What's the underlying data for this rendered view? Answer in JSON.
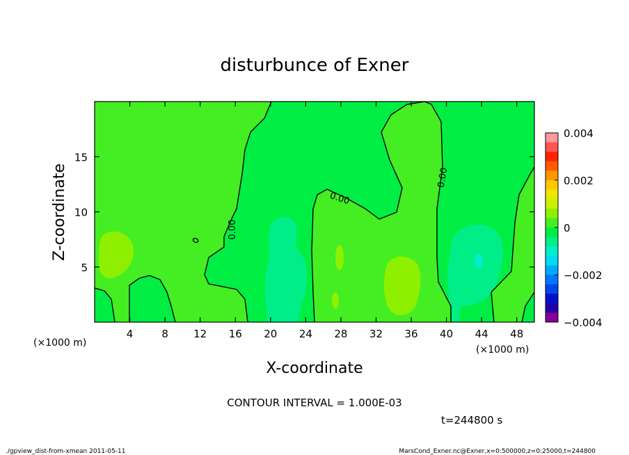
{
  "chart_data": {
    "type": "heatmap",
    "title": "disturbunce of Exner",
    "xlabel": "X-coordinate",
    "ylabel": "Z-coordinate",
    "x_unit": "(×1000 m)",
    "z_unit": "(×1000 m)",
    "xlim": [
      0,
      50
    ],
    "ylim": [
      0,
      20
    ],
    "x_ticks": [
      4,
      8,
      12,
      16,
      20,
      24,
      28,
      32,
      36,
      40,
      44,
      48
    ],
    "y_ticks": [
      5,
      10,
      15
    ],
    "colorbar": {
      "ticks": [
        {
          "value": 0.004,
          "label": "0.004"
        },
        {
          "value": 0.002,
          "label": "0.002"
        },
        {
          "value": 0,
          "label": "0"
        },
        {
          "value": -0.002,
          "label": "−0.002"
        },
        {
          "value": -0.004,
          "label": "−0.004"
        }
      ],
      "levels": [
        {
          "lo": 0.0036,
          "hi": 0.004,
          "color": "#ff9999"
        },
        {
          "lo": 0.0032,
          "hi": 0.0036,
          "color": "#ff5555"
        },
        {
          "lo": 0.0028,
          "hi": 0.0032,
          "color": "#ff2200"
        },
        {
          "lo": 0.0024,
          "hi": 0.0028,
          "color": "#ff5a00"
        },
        {
          "lo": 0.002,
          "hi": 0.0024,
          "color": "#ff9600"
        },
        {
          "lo": 0.0016,
          "hi": 0.002,
          "color": "#ffc800"
        },
        {
          "lo": 0.0012,
          "hi": 0.0016,
          "color": "#eee600"
        },
        {
          "lo": 0.0008,
          "hi": 0.0012,
          "color": "#c8f000"
        },
        {
          "lo": 0.0004,
          "hi": 0.0008,
          "color": "#8ef000"
        },
        {
          "lo": 0.0,
          "hi": 0.0004,
          "color": "#44ee22"
        },
        {
          "lo": -0.0004,
          "hi": 0.0,
          "color": "#00ee44"
        },
        {
          "lo": -0.0008,
          "hi": -0.0004,
          "color": "#00ee88"
        },
        {
          "lo": -0.0012,
          "hi": -0.0008,
          "color": "#00eecc"
        },
        {
          "lo": -0.0016,
          "hi": -0.0012,
          "color": "#00ddee"
        },
        {
          "lo": -0.002,
          "hi": -0.0016,
          "color": "#00aaff"
        },
        {
          "lo": -0.0024,
          "hi": -0.002,
          "color": "#0077ff"
        },
        {
          "lo": -0.0028,
          "hi": -0.0024,
          "color": "#0044ee"
        },
        {
          "lo": -0.0032,
          "hi": -0.0028,
          "color": "#0011cc"
        },
        {
          "lo": -0.0036,
          "hi": -0.0032,
          "color": "#2200aa"
        },
        {
          "lo": -0.004,
          "hi": -0.0036,
          "color": "#880099"
        }
      ]
    },
    "contour_labels": [
      "0.00",
      "0.00",
      "0.00",
      "0.00"
    ],
    "contour_interval_text": "CONTOUR INTERVAL = 1.000E-03",
    "time_text": "t=244800 s",
    "grid": false
  },
  "footer": {
    "left": "./gpview_dist-from-xmean  2011-05-11",
    "right": "MarsCond_Exner.nc@Exner,x=0:500000,z=0:25000,t=244800"
  },
  "colors": {
    "background_field": "#44ee22",
    "negative_patch": "#00ee44",
    "teal_patch": "#00ee88",
    "positive_patch": "#8ef000"
  }
}
